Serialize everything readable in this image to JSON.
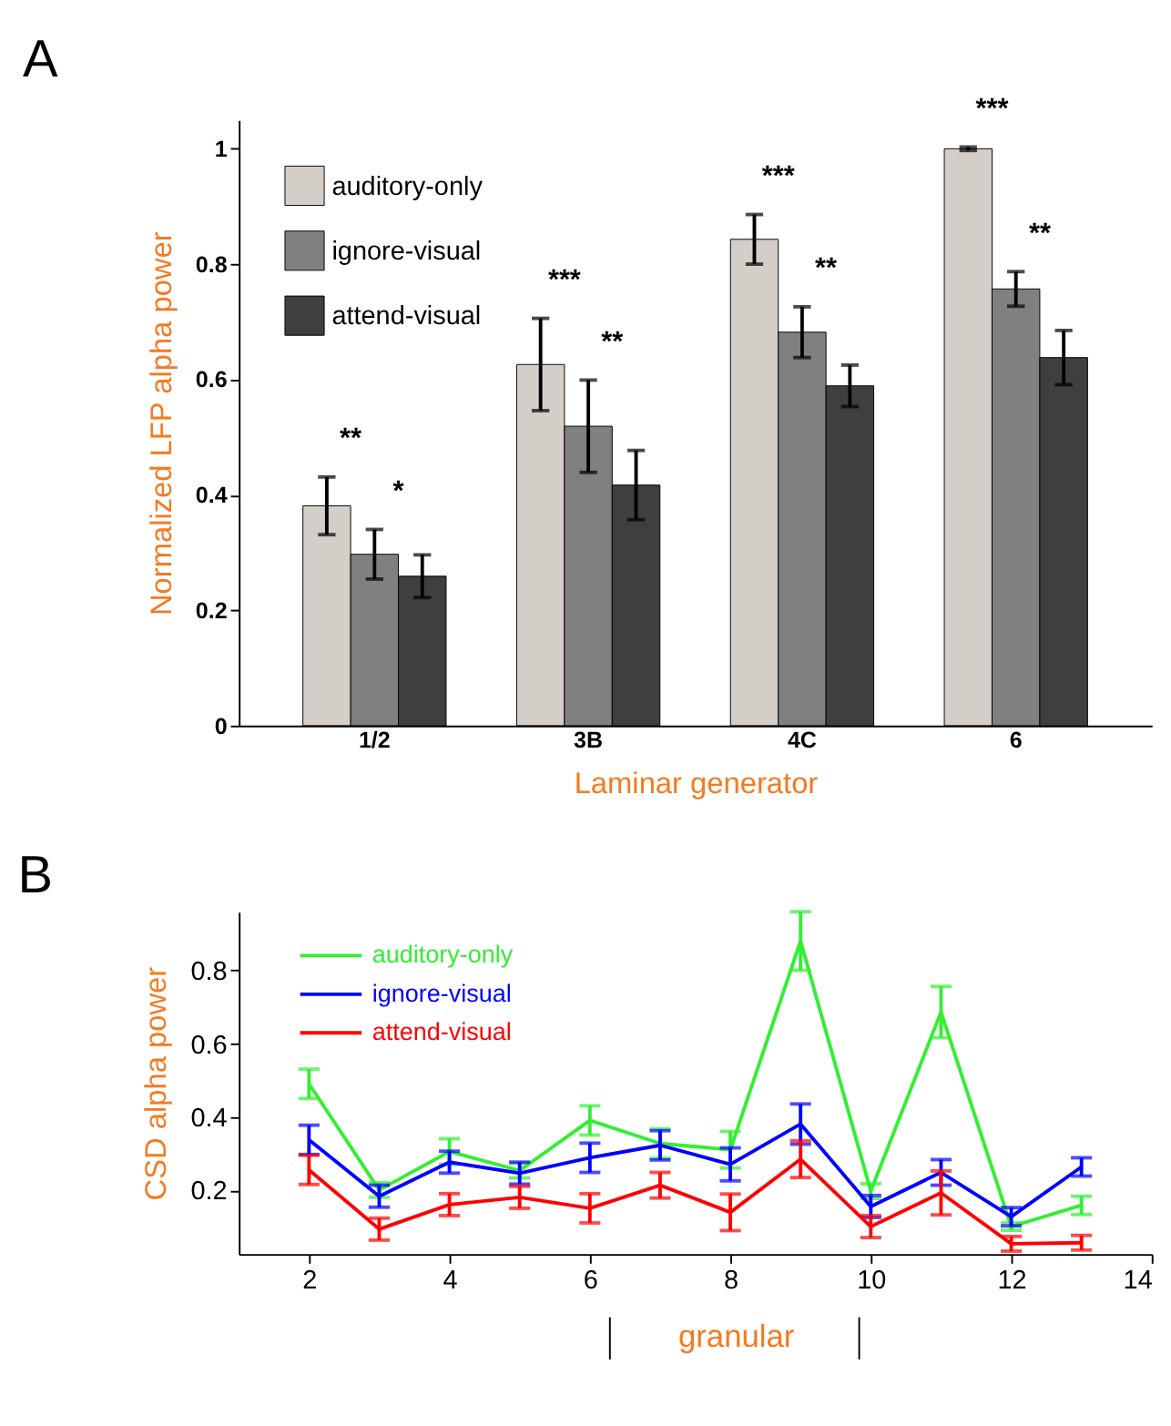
{
  "chart_data": [
    {
      "type": "bar",
      "title": "A",
      "xlabel": "Laminar generator",
      "ylabel": "Normalized LFP alpha power",
      "categories": [
        "1/2",
        "3B",
        "4C",
        "6"
      ],
      "series": [
        {
          "name": "auditory-only",
          "color": "#d3cfc8",
          "values": [
            0.381,
            0.626,
            0.843,
            1.0
          ],
          "errors": [
            0.05,
            0.08,
            0.043,
            0.003
          ]
        },
        {
          "name": "ignore-visual",
          "color": "#808080",
          "values": [
            0.297,
            0.519,
            0.682,
            0.757
          ],
          "errors": [
            0.043,
            0.08,
            0.044,
            0.03
          ]
        },
        {
          "name": "attend-visual",
          "color": "#3f3f3f",
          "values": [
            0.259,
            0.417,
            0.589,
            0.638
          ],
          "errors": [
            0.037,
            0.06,
            0.036,
            0.047
          ]
        }
      ],
      "ylim": [
        0,
        1.05
      ],
      "yticks": [
        0,
        0.2,
        0.4,
        0.6,
        0.8,
        1
      ],
      "legend": "top left",
      "grid": false,
      "annotations": [
        "**",
        "*",
        "***",
        "**",
        "***",
        "**",
        "***",
        "**"
      ]
    },
    {
      "type": "line",
      "title": "B",
      "ylabel": "CSD alpha power",
      "x": [
        2,
        3,
        4,
        5,
        6,
        7,
        8,
        9,
        10,
        11,
        12,
        13
      ],
      "series": [
        {
          "name": "auditory-only",
          "color": "#33ee33",
          "values": [
            0.49,
            0.2,
            0.305,
            0.253,
            0.39,
            0.327,
            0.31,
            0.88,
            0.197,
            0.686,
            0.1,
            0.158
          ],
          "errors": [
            0.04,
            0.02,
            0.035,
            0.02,
            0.04,
            0.04,
            0.05,
            0.08,
            0.02,
            0.07,
            0.01,
            0.025
          ]
        },
        {
          "name": "ignore-visual",
          "color": "#0000ff",
          "values": [
            0.337,
            0.183,
            0.276,
            0.246,
            0.288,
            0.322,
            0.27,
            0.38,
            0.155,
            0.248,
            0.127,
            0.263
          ],
          "errors": [
            0.04,
            0.03,
            0.03,
            0.03,
            0.04,
            0.04,
            0.045,
            0.055,
            0.03,
            0.035,
            0.025,
            0.025
          ]
        },
        {
          "name": "attend-visual",
          "color": "#ff0000",
          "values": [
            0.255,
            0.093,
            0.16,
            0.18,
            0.15,
            0.213,
            0.139,
            0.284,
            0.1,
            0.192,
            0.053,
            0.056
          ],
          "errors": [
            0.04,
            0.03,
            0.03,
            0.03,
            0.04,
            0.035,
            0.05,
            0.05,
            0.03,
            0.06,
            0.02,
            0.02
          ]
        }
      ],
      "xlim": [
        1,
        14
      ],
      "xticks": [
        2,
        4,
        6,
        8,
        10,
        12,
        14
      ],
      "ylim": [
        0.025,
        0.96
      ],
      "yticks": [
        0.2,
        0.4,
        0.6,
        0.8
      ],
      "legend": "top left",
      "grid": false,
      "marker": "none",
      "line_style": "solid",
      "annotations": [
        "granular"
      ]
    }
  ]
}
